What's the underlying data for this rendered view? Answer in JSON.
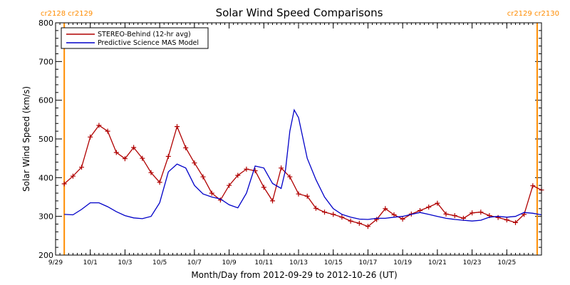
{
  "chart_data": {
    "type": "line",
    "title": "Solar Wind Speed Comparisons",
    "xlabel": "Month/Day from 2012-09-29 to 2012-10-26 (UT)",
    "ylabel": "Solar Wind Speed (km/s)",
    "xlim": [
      "2012-09-29",
      "2012-10-27"
    ],
    "ylim": [
      200,
      800
    ],
    "y_ticks": [
      200,
      300,
      400,
      500,
      600,
      700,
      800
    ],
    "x_tick_labels": [
      {
        "label": "9/29",
        "date": "2012-09-29"
      },
      {
        "label": "10/1",
        "date": "2012-10-01"
      },
      {
        "label": "10/3",
        "date": "2012-10-03"
      },
      {
        "label": "10/5",
        "date": "2012-10-05"
      },
      {
        "label": "10/7",
        "date": "2012-10-07"
      },
      {
        "label": "10/9",
        "date": "2012-10-09"
      },
      {
        "label": "10/11",
        "date": "2012-10-11"
      },
      {
        "label": "10/13",
        "date": "2012-10-13"
      },
      {
        "label": "10/15",
        "date": "2012-10-15"
      },
      {
        "label": "10/17",
        "date": "2012-10-17"
      },
      {
        "label": "10/19",
        "date": "2012-10-19"
      },
      {
        "label": "10/21",
        "date": "2012-10-21"
      },
      {
        "label": "10/23",
        "date": "2012-10-23"
      },
      {
        "label": "10/25",
        "date": "2012-10-25"
      }
    ],
    "grid": false,
    "legend": "top-left",
    "carrington_labels": {
      "left": "cr2128 cr2129",
      "right": "cr2129 cr2130"
    },
    "carrington_lines": [
      "2012-09-29 12:00",
      "2012-10-26 18:00"
    ],
    "series": [
      {
        "name": "STEREO-Behind (12-hr avg)",
        "color": "#b00000",
        "markers": "plus",
        "x": [
          "2012-09-29 12:00",
          "2012-09-30 00:00",
          "2012-09-30 12:00",
          "2012-10-01 00:00",
          "2012-10-01 12:00",
          "2012-10-02 00:00",
          "2012-10-02 12:00",
          "2012-10-03 00:00",
          "2012-10-03 12:00",
          "2012-10-04 00:00",
          "2012-10-04 12:00",
          "2012-10-05 00:00",
          "2012-10-05 12:00",
          "2012-10-06 00:00",
          "2012-10-06 12:00",
          "2012-10-07 00:00",
          "2012-10-07 12:00",
          "2012-10-08 00:00",
          "2012-10-08 12:00",
          "2012-10-09 00:00",
          "2012-10-09 12:00",
          "2012-10-10 00:00",
          "2012-10-10 12:00",
          "2012-10-11 00:00",
          "2012-10-11 12:00",
          "2012-10-12 00:00",
          "2012-10-12 12:00",
          "2012-10-13 00:00",
          "2012-10-13 12:00",
          "2012-10-14 00:00",
          "2012-10-14 12:00",
          "2012-10-15 00:00",
          "2012-10-15 12:00",
          "2012-10-16 00:00",
          "2012-10-16 12:00",
          "2012-10-17 00:00",
          "2012-10-17 12:00",
          "2012-10-18 00:00",
          "2012-10-18 12:00",
          "2012-10-19 00:00",
          "2012-10-19 12:00",
          "2012-10-20 00:00",
          "2012-10-20 12:00",
          "2012-10-21 00:00",
          "2012-10-21 12:00",
          "2012-10-22 00:00",
          "2012-10-22 12:00",
          "2012-10-23 00:00",
          "2012-10-23 12:00",
          "2012-10-24 00:00",
          "2012-10-24 12:00",
          "2012-10-25 00:00",
          "2012-10-25 12:00",
          "2012-10-26 00:00",
          "2012-10-26 12:00",
          "2012-10-27 00:00"
        ],
        "values": [
          384,
          404,
          427,
          505,
          535,
          520,
          465,
          449,
          478,
          450,
          413,
          388,
          455,
          532,
          477,
          438,
          402,
          360,
          342,
          380,
          406,
          422,
          418,
          375,
          340,
          425,
          402,
          358,
          352,
          321,
          311,
          305,
          298,
          288,
          282,
          274,
          292,
          320,
          304,
          293,
          306,
          315,
          324,
          334,
          306,
          302,
          295,
          309,
          311,
          302,
          297,
          291,
          284,
          305,
          379,
          368
        ]
      },
      {
        "name": "Predictive Science MAS Model",
        "color": "#0000c8",
        "markers": "none",
        "x": [
          "2012-09-29 12:00",
          "2012-09-30 00:00",
          "2012-09-30 12:00",
          "2012-10-01 00:00",
          "2012-10-01 12:00",
          "2012-10-02 00:00",
          "2012-10-02 12:00",
          "2012-10-03 00:00",
          "2012-10-03 12:00",
          "2012-10-04 00:00",
          "2012-10-04 12:00",
          "2012-10-05 00:00",
          "2012-10-05 12:00",
          "2012-10-06 00:00",
          "2012-10-06 12:00",
          "2012-10-07 00:00",
          "2012-10-07 12:00",
          "2012-10-08 00:00",
          "2012-10-08 12:00",
          "2012-10-09 00:00",
          "2012-10-09 12:00",
          "2012-10-10 00:00",
          "2012-10-10 12:00",
          "2012-10-11 00:00",
          "2012-10-11 12:00",
          "2012-10-12 00:00",
          "2012-10-12 06:00",
          "2012-10-12 12:00",
          "2012-10-12 18:00",
          "2012-10-13 00:00",
          "2012-10-13 12:00",
          "2012-10-14 00:00",
          "2012-10-14 12:00",
          "2012-10-15 00:00",
          "2012-10-15 12:00",
          "2012-10-16 00:00",
          "2012-10-16 12:00",
          "2012-10-17 00:00",
          "2012-10-17 12:00",
          "2012-10-18 00:00",
          "2012-10-18 12:00",
          "2012-10-19 00:00",
          "2012-10-19 12:00",
          "2012-10-20 00:00",
          "2012-10-20 12:00",
          "2012-10-21 00:00",
          "2012-10-21 12:00",
          "2012-10-22 00:00",
          "2012-10-22 12:00",
          "2012-10-23 00:00",
          "2012-10-23 12:00",
          "2012-10-24 00:00",
          "2012-10-24 12:00",
          "2012-10-25 00:00",
          "2012-10-25 12:00",
          "2012-10-26 00:00",
          "2012-10-26 12:00",
          "2012-10-27 00:00"
        ],
        "values": [
          305,
          304,
          318,
          335,
          335,
          325,
          312,
          302,
          296,
          294,
          300,
          335,
          415,
          435,
          425,
          380,
          358,
          350,
          345,
          330,
          322,
          360,
          430,
          425,
          385,
          372,
          420,
          520,
          575,
          555,
          450,
          395,
          350,
          320,
          305,
          298,
          293,
          292,
          295,
          295,
          298,
          300,
          305,
          310,
          305,
          300,
          295,
          292,
          290,
          288,
          290,
          298,
          300,
          298,
          300,
          310,
          308,
          304
        ]
      }
    ]
  }
}
